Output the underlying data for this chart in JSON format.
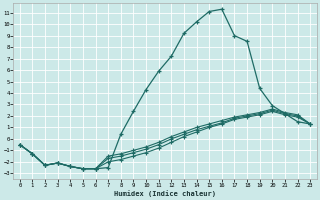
{
  "xlabel": "Humidex (Indice chaleur)",
  "bg_color": "#cce9e8",
  "line_color": "#1e6b65",
  "grid_color": "#ffffff",
  "xlim": [
    -0.5,
    23.5
  ],
  "ylim": [
    -3.5,
    11.8
  ],
  "xticks": [
    0,
    1,
    2,
    3,
    4,
    5,
    6,
    7,
    8,
    9,
    10,
    11,
    12,
    13,
    14,
    15,
    16,
    17,
    18,
    19,
    20,
    21,
    22,
    23
  ],
  "yticks": [
    -3,
    -2,
    -1,
    0,
    1,
    2,
    3,
    4,
    5,
    6,
    7,
    8,
    9,
    10,
    11
  ],
  "curve1_x": [
    0,
    1,
    2,
    3,
    4,
    5,
    6,
    7,
    8,
    9,
    10,
    11,
    12,
    13,
    14,
    15,
    16,
    17,
    18,
    19,
    20,
    21,
    22,
    23
  ],
  "curve1_y": [
    -0.5,
    -1.3,
    -2.3,
    -2.1,
    -2.4,
    -2.6,
    -2.6,
    -2.5,
    0.4,
    2.4,
    4.3,
    5.9,
    7.2,
    9.2,
    10.2,
    11.1,
    11.3,
    9.0,
    8.5,
    4.4,
    2.9,
    2.2,
    1.5,
    1.3
  ],
  "curve2_x": [
    0,
    1,
    2,
    3,
    4,
    5,
    6,
    7,
    8,
    9,
    10,
    11,
    12,
    13,
    14,
    15,
    16,
    17,
    18,
    19,
    20,
    21,
    22,
    23
  ],
  "curve2_y": [
    -0.5,
    -1.3,
    -2.3,
    -2.1,
    -2.4,
    -2.6,
    -2.6,
    -2.0,
    -1.8,
    -1.5,
    -1.2,
    -0.8,
    -0.3,
    0.2,
    0.6,
    1.0,
    1.3,
    1.7,
    1.9,
    2.1,
    2.4,
    2.1,
    1.9,
    1.3
  ],
  "curve3_x": [
    0,
    1,
    2,
    3,
    4,
    5,
    6,
    7,
    8,
    9,
    10,
    11,
    12,
    13,
    14,
    15,
    16,
    17,
    18,
    19,
    20,
    21,
    22,
    23
  ],
  "curve3_y": [
    -0.5,
    -1.3,
    -2.3,
    -2.1,
    -2.4,
    -2.6,
    -2.6,
    -1.7,
    -1.5,
    -1.2,
    -0.9,
    -0.5,
    0.0,
    0.4,
    0.8,
    1.1,
    1.4,
    1.8,
    2.0,
    2.2,
    2.5,
    2.2,
    2.0,
    1.3
  ],
  "curve4_x": [
    0,
    1,
    2,
    3,
    4,
    5,
    6,
    7,
    8,
    9,
    10,
    11,
    12,
    13,
    14,
    15,
    16,
    17,
    18,
    19,
    20,
    21,
    22,
    23
  ],
  "curve4_y": [
    -0.5,
    -1.3,
    -2.3,
    -2.1,
    -2.4,
    -2.6,
    -2.6,
    -1.5,
    -1.3,
    -1.0,
    -0.7,
    -0.3,
    0.2,
    0.6,
    1.0,
    1.3,
    1.6,
    1.9,
    2.1,
    2.3,
    2.6,
    2.3,
    2.1,
    1.3
  ]
}
